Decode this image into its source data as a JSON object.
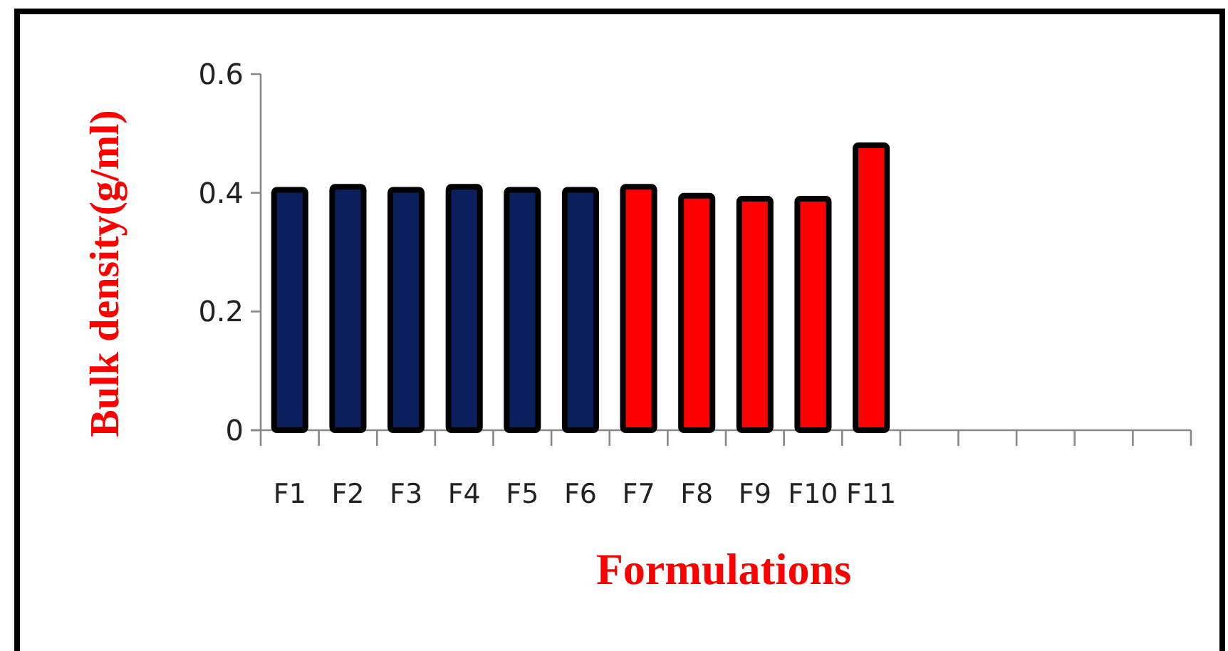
{
  "chart_data": {
    "type": "bar",
    "xlabel": "Formulations",
    "ylabel": "Bulk density(g/ml)",
    "categories": [
      "F1",
      "F2",
      "F3",
      "F4",
      "F5",
      "F6",
      "F7",
      "F8",
      "F9",
      "F10",
      "F11",
      null,
      null,
      null,
      null,
      null
    ],
    "values": [
      0.405,
      0.41,
      0.405,
      0.41,
      0.405,
      0.405,
      0.41,
      0.395,
      0.39,
      0.39,
      0.48,
      null,
      null,
      null,
      null,
      null
    ],
    "colors": [
      "#0a1f5c",
      "#0a1f5c",
      "#0a1f5c",
      "#0a1f5c",
      "#0a1f5c",
      "#0a1f5c",
      "#ff0000",
      "#ff0000",
      "#ff0000",
      "#ff0000",
      "#ff0000",
      null,
      null,
      null,
      null,
      null
    ],
    "ylim": [
      0,
      0.6
    ],
    "yticks": [
      0,
      0.2,
      0.4,
      0.6
    ],
    "grid": false
  }
}
